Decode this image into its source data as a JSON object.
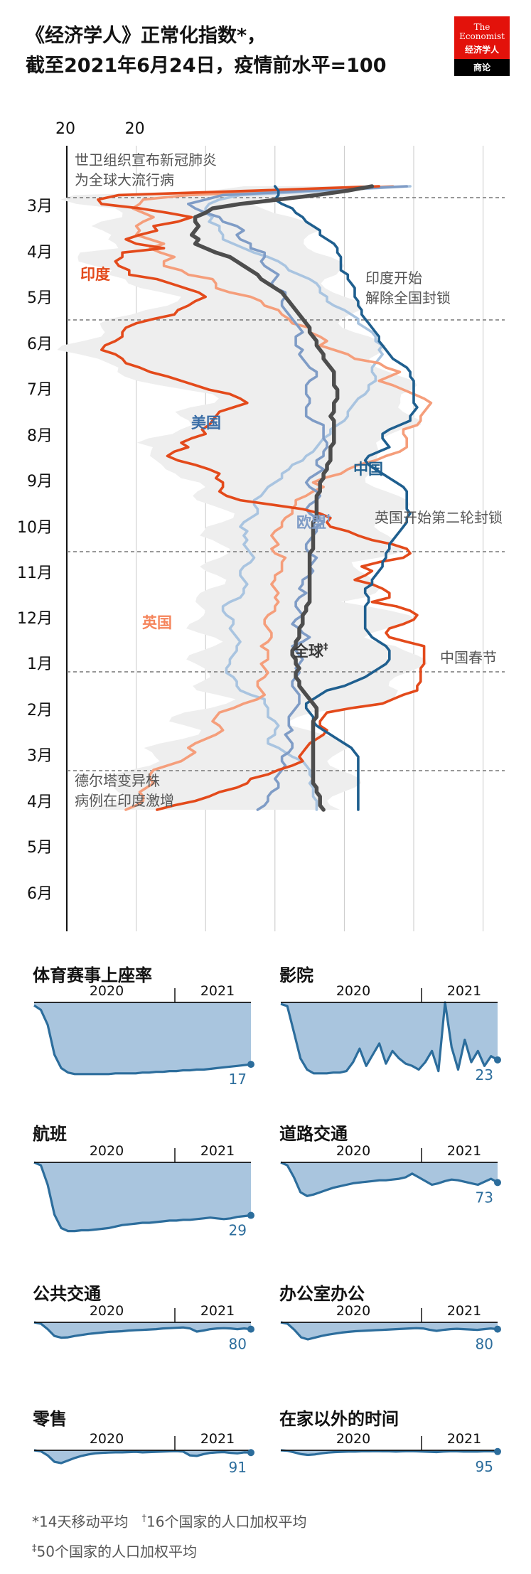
{
  "header": {
    "title_line1": "《经济学人》正常化指数*，",
    "title_line2": "截至2021年6月24日，疫情前水平=100"
  },
  "logo": {
    "line1": "The",
    "line2": "Economist",
    "line3": "经济学人",
    "bar": "商论"
  },
  "colors": {
    "india": "#e34a1b",
    "us": "#7f9cc6",
    "global": "#4d4d4d",
    "china": "#1f5f8f",
    "uk": "#f59e7b",
    "eu": "#a9c4e0",
    "band": "#e6e6e6",
    "small_fill": "#a9c5de",
    "small_line": "#2c6d9c"
  },
  "chart_data": [
    {
      "type": "line",
      "orientation": "vertical-time",
      "x_ticks": [
        "20",
        "20"
      ],
      "xlim": [
        0,
        100
      ],
      "y_ticks": [
        "3月",
        "4月",
        "5月",
        "6月",
        "7月",
        "8月",
        "9月",
        "10月",
        "11月",
        "12月",
        "1月",
        "2月",
        "3月",
        "4月",
        "5月",
        "6月"
      ],
      "series": [
        {
          "name": "印度",
          "key": "india",
          "values": [
            90,
            54,
            15,
            9,
            10,
            21,
            29,
            36,
            32,
            25,
            26,
            21,
            17,
            20,
            28,
            16,
            16,
            14,
            15,
            18,
            18,
            26,
            30,
            34,
            38,
            40,
            37,
            35,
            32,
            31,
            25,
            20,
            17,
            16,
            16,
            14,
            11,
            10,
            14,
            16,
            17,
            21,
            24,
            29,
            33,
            37,
            41,
            47,
            50,
            52,
            48,
            44,
            43,
            42,
            41,
            39,
            40,
            36,
            33,
            35,
            31,
            29,
            32,
            37,
            41,
            44,
            43,
            45,
            45,
            44,
            46,
            50,
            59,
            68,
            73,
            76,
            75,
            76,
            81,
            84,
            88,
            94,
            98,
            99,
            97,
            90,
            85,
            88,
            86,
            83,
            88,
            91,
            93,
            93,
            88,
            95,
            99,
            101,
            100,
            97,
            93,
            92,
            93,
            98,
            103,
            103,
            103,
            103,
            103,
            102,
            102,
            102,
            102,
            101,
            101,
            97,
            94,
            91,
            82,
            75,
            74,
            73,
            73,
            75,
            74,
            72,
            70,
            69,
            68,
            67,
            68,
            65,
            61,
            58,
            53,
            52,
            49,
            44,
            41,
            37,
            31,
            26
          ]
        },
        {
          "name": "英国",
          "key": "uk",
          "values": [
            94,
            65,
            35,
            22,
            21,
            19,
            22,
            25,
            22,
            20,
            21,
            20,
            24,
            28,
            24,
            27,
            31,
            28,
            28,
            33,
            35,
            42,
            43,
            43,
            47,
            53,
            56,
            57,
            61,
            62,
            64,
            65,
            70,
            70,
            73,
            75,
            73,
            77,
            81,
            83,
            90,
            92,
            96,
            93,
            90,
            94,
            97,
            100,
            103,
            105,
            104,
            103,
            102,
            102,
            101,
            97,
            97,
            98,
            98,
            98,
            96,
            92,
            89,
            84,
            81,
            79,
            74,
            71,
            74,
            71,
            69,
            66,
            66,
            65,
            65,
            63,
            62,
            62,
            60,
            59,
            60,
            61,
            59,
            60,
            63,
            62,
            62,
            62,
            60,
            60,
            59,
            60,
            61,
            60,
            61,
            60,
            60,
            58,
            57,
            57,
            58,
            59,
            59,
            58,
            56,
            58,
            58,
            58,
            56,
            57,
            58,
            57,
            55,
            55,
            56,
            57,
            55,
            51,
            48,
            44,
            43,
            42,
            44,
            45,
            43,
            40,
            37,
            35,
            37,
            35,
            33,
            29,
            25,
            24,
            24,
            25,
            23,
            21,
            22,
            22,
            20,
            17
          ]
        },
        {
          "name": "美国",
          "key": "us",
          "values": [
            98,
            70,
            45,
            40,
            35,
            37,
            40,
            44,
            45,
            49,
            51,
            49,
            50,
            53,
            53,
            57,
            57,
            56,
            57,
            59,
            61,
            60,
            59,
            60,
            63,
            63,
            62,
            62,
            63,
            64,
            65,
            66,
            67,
            68,
            66,
            66,
            66,
            68,
            67,
            68,
            69,
            70,
            72,
            72,
            70,
            69,
            69,
            69,
            70,
            70,
            69,
            69,
            69,
            71,
            74,
            74,
            74,
            74,
            75,
            75,
            74,
            74,
            72,
            72,
            74,
            72,
            70,
            69,
            70,
            72,
            73,
            72,
            70,
            69,
            70,
            72,
            74,
            72,
            72,
            71,
            70,
            69,
            69,
            70,
            72,
            71,
            70,
            71,
            70,
            68,
            68,
            67,
            69,
            67,
            66,
            66,
            67,
            68,
            66,
            65,
            67,
            68,
            70,
            68,
            65,
            66,
            67,
            68,
            67,
            66,
            67,
            66,
            65,
            65,
            66,
            67,
            67,
            67,
            66,
            65,
            64,
            64,
            64,
            65,
            63,
            64,
            65,
            65,
            64,
            62,
            62,
            63,
            62,
            61,
            60,
            61,
            61,
            59,
            58,
            58,
            57,
            55
          ]
        },
        {
          "name": "欧盟",
          "key": "eu",
          "values": [
            99,
            75,
            50,
            44,
            41,
            40,
            40,
            42,
            41,
            44,
            44,
            45,
            45,
            48,
            51,
            54,
            58,
            61,
            63,
            64,
            67,
            70,
            72,
            73,
            73,
            75,
            75,
            77,
            80,
            82,
            84,
            84,
            86,
            88,
            89,
            89,
            91,
            90,
            91,
            90,
            89,
            88,
            88,
            89,
            89,
            87,
            87,
            86,
            84,
            83,
            82,
            81,
            81,
            80,
            78,
            76,
            76,
            74,
            73,
            72,
            71,
            69,
            68,
            65,
            64,
            62,
            62,
            60,
            58,
            57,
            56,
            54,
            54,
            55,
            55,
            53,
            51,
            50,
            52,
            51,
            52,
            51,
            52,
            53,
            54,
            53,
            51,
            50,
            50,
            51,
            52,
            51,
            51,
            50,
            47,
            45,
            45,
            46,
            48,
            48,
            47,
            48,
            49,
            50,
            49,
            49,
            48,
            47,
            47,
            46,
            46,
            48,
            49,
            49,
            50,
            53,
            57,
            57,
            58,
            58,
            58,
            60,
            61,
            60,
            60,
            58,
            58,
            61,
            63,
            65,
            68,
            69,
            70,
            70,
            71,
            70,
            71,
            71,
            71,
            72,
            72,
            72
          ]
        },
        {
          "name": "全球",
          "key": "global",
          "values": [
            88,
            81,
            72,
            61,
            50,
            42,
            40,
            37,
            37,
            38,
            37,
            36,
            38,
            37,
            40,
            43,
            47,
            49,
            51,
            53,
            55,
            56,
            58,
            60,
            62,
            63,
            64,
            65,
            66,
            67,
            68,
            69,
            70,
            70,
            71,
            72,
            72,
            73,
            74,
            74,
            75,
            76,
            77,
            77,
            77,
            77,
            78,
            78,
            78,
            77,
            77,
            77,
            76,
            77,
            77,
            77,
            77,
            77,
            77,
            76,
            76,
            76,
            76,
            75,
            75,
            74,
            74,
            73,
            73,
            73,
            72,
            72,
            72,
            72,
            72,
            72,
            71,
            71,
            71,
            71,
            71,
            71,
            71,
            70,
            70,
            70,
            70,
            70,
            70,
            70,
            70,
            70,
            70,
            70,
            70,
            69,
            69,
            68,
            68,
            68,
            67,
            67,
            67,
            66,
            66,
            65,
            65,
            66,
            66,
            67,
            66,
            66,
            67,
            67,
            68,
            69,
            70,
            71,
            72,
            72,
            72,
            71,
            71,
            71,
            71,
            71,
            71,
            71,
            71,
            71,
            71,
            71,
            71,
            71,
            71,
            71,
            72,
            72,
            73,
            73,
            73,
            74
          ]
        },
        {
          "name": "中国",
          "key": "china",
          "values": [
            60,
            61,
            61,
            60,
            62,
            65,
            66,
            68,
            69,
            71,
            73,
            73,
            75,
            77,
            78,
            78,
            79,
            79,
            79,
            79,
            81,
            81,
            82,
            83,
            83,
            83,
            84,
            84,
            85,
            85,
            86,
            87,
            88,
            89,
            90,
            90,
            91,
            92,
            93,
            94,
            96,
            98,
            99,
            99,
            100,
            100,
            100,
            100,
            100,
            100,
            101,
            100,
            99,
            99,
            96,
            93,
            91,
            91,
            92,
            93,
            90,
            87,
            86,
            87,
            89,
            91,
            93,
            95,
            97,
            98,
            98,
            98,
            98,
            98,
            99,
            98,
            98,
            97,
            96,
            95,
            94,
            93,
            93,
            92,
            92,
            91,
            91,
            90,
            89,
            88,
            88,
            86,
            86,
            87,
            87,
            86,
            86,
            86,
            86,
            86,
            86,
            87,
            88,
            90,
            92,
            93,
            93,
            93,
            92,
            90,
            88,
            86,
            83,
            80,
            75,
            73,
            71,
            69,
            69,
            70,
            71,
            71,
            72,
            74,
            76,
            78,
            80,
            82,
            83,
            84,
            84,
            84,
            84,
            84,
            84,
            84,
            84,
            84,
            84,
            84,
            84,
            84
          ]
        }
      ]
    },
    {
      "title": "体育赛事上座率",
      "type": "area",
      "x_ticks": [
        "2020",
        "2021"
      ],
      "end_value": "17"
    },
    {
      "title": "影院",
      "type": "area",
      "x_ticks": [
        "2020",
        "2021"
      ],
      "end_value": "23"
    },
    {
      "title": "航班",
      "type": "area",
      "x_ticks": [
        "2020",
        "2021"
      ],
      "end_value": "29"
    },
    {
      "title": "道路交通",
      "type": "area",
      "x_ticks": [
        "2020",
        "2021"
      ],
      "end_value": "73"
    },
    {
      "title": "公共交通",
      "type": "area",
      "x_ticks": [
        "2020",
        "2021"
      ],
      "end_value": "80"
    },
    {
      "title": "办公室办公",
      "type": "area",
      "x_ticks": [
        "2020",
        "2021"
      ],
      "end_value": "80"
    },
    {
      "title": "零售",
      "type": "area",
      "x_ticks": [
        "2020",
        "2021"
      ],
      "end_value": "91"
    },
    {
      "title": "在家以外的时间",
      "type": "area",
      "x_ticks": [
        "2020",
        "2021"
      ],
      "end_value": "95"
    }
  ],
  "annotations": {
    "who": [
      "世卫组织宣布新冠肺炎",
      "为全球大流行病"
    ],
    "india_unlock": [
      "印度开始",
      "解除全国封锁"
    ],
    "uk_lockdown": "英国开始第二轮封锁",
    "china_new_year": "中国春节",
    "delta": [
      "德尔塔变异株",
      "病例在印度激增"
    ]
  },
  "series_labels": {
    "india": "印度",
    "us": "美国",
    "china": "中国",
    "eu": "欧盟",
    "eu_mark": "†",
    "uk": "英国",
    "global": "全球",
    "global_mark": "‡"
  },
  "footnotes": {
    "line1a": "*14天移动平均",
    "mark1": "†",
    "line1b": "16个国家的人口加权平均",
    "mark2": "‡",
    "line2": "50个国家的人口加权平均"
  }
}
